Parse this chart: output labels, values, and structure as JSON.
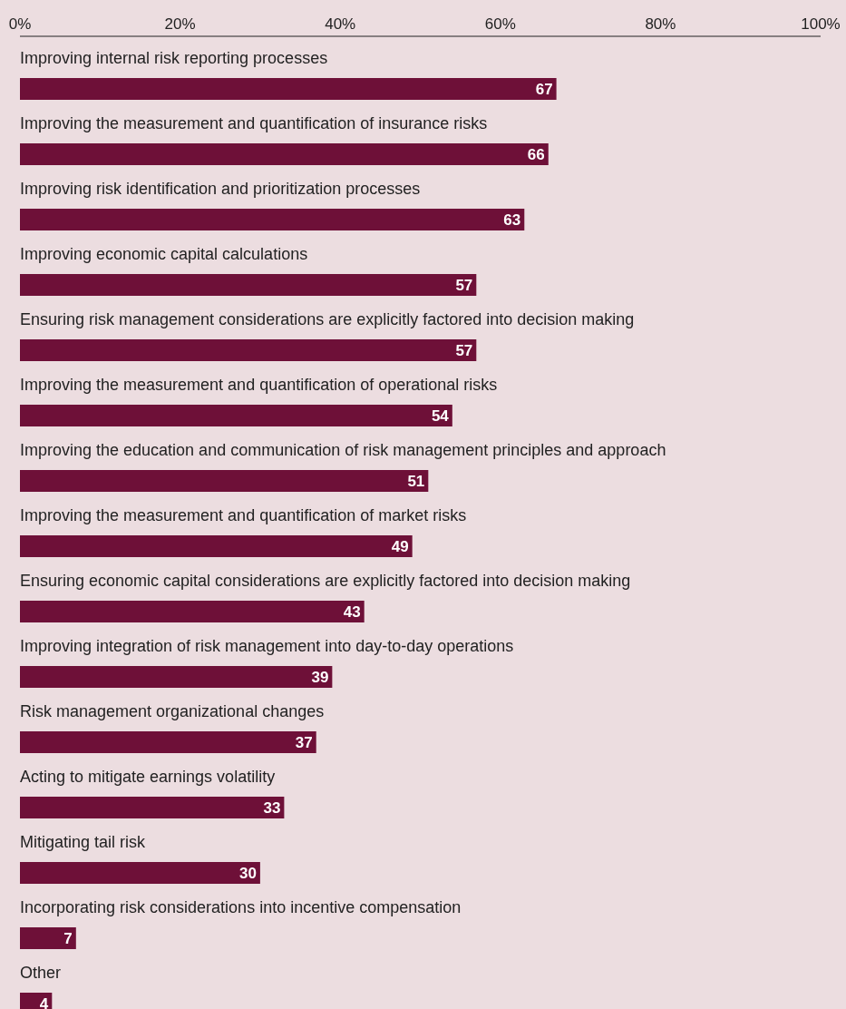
{
  "chart_data": {
    "type": "bar",
    "orientation": "horizontal",
    "categories": [
      "Improving internal risk reporting processes",
      "Improving the measurement and quantification of insurance risks",
      "Improving risk identification and prioritization processes",
      "Improving economic capital calculations",
      "Ensuring risk management considerations are explicitly factored into decision making",
      "Improving the measurement and quantification of operational risks",
      "Improving the education and communication of risk management principles and approach",
      "Improving the measurement and quantification of market risks",
      "Ensuring economic capital considerations are explicitly factored into decision making",
      "Improving integration of risk management into day-to-day operations",
      "Risk management organizational changes",
      "Acting to mitigate earnings volatility",
      "Mitigating tail risk",
      "Incorporating risk considerations into incentive compensation",
      "Other"
    ],
    "values": [
      67,
      66,
      63,
      57,
      57,
      54,
      51,
      49,
      43,
      39,
      37,
      33,
      30,
      7,
      4
    ],
    "color": "#6e1038",
    "xlim": [
      0,
      100
    ],
    "xticks": [
      {
        "value": 0,
        "label": "0%"
      },
      {
        "value": 20,
        "label": "20%"
      },
      {
        "value": 40,
        "label": "40%"
      },
      {
        "value": 60,
        "label": "60%"
      },
      {
        "value": 80,
        "label": "80%"
      },
      {
        "value": 100,
        "label": "100%"
      }
    ],
    "data_labels": true,
    "grid": false
  }
}
